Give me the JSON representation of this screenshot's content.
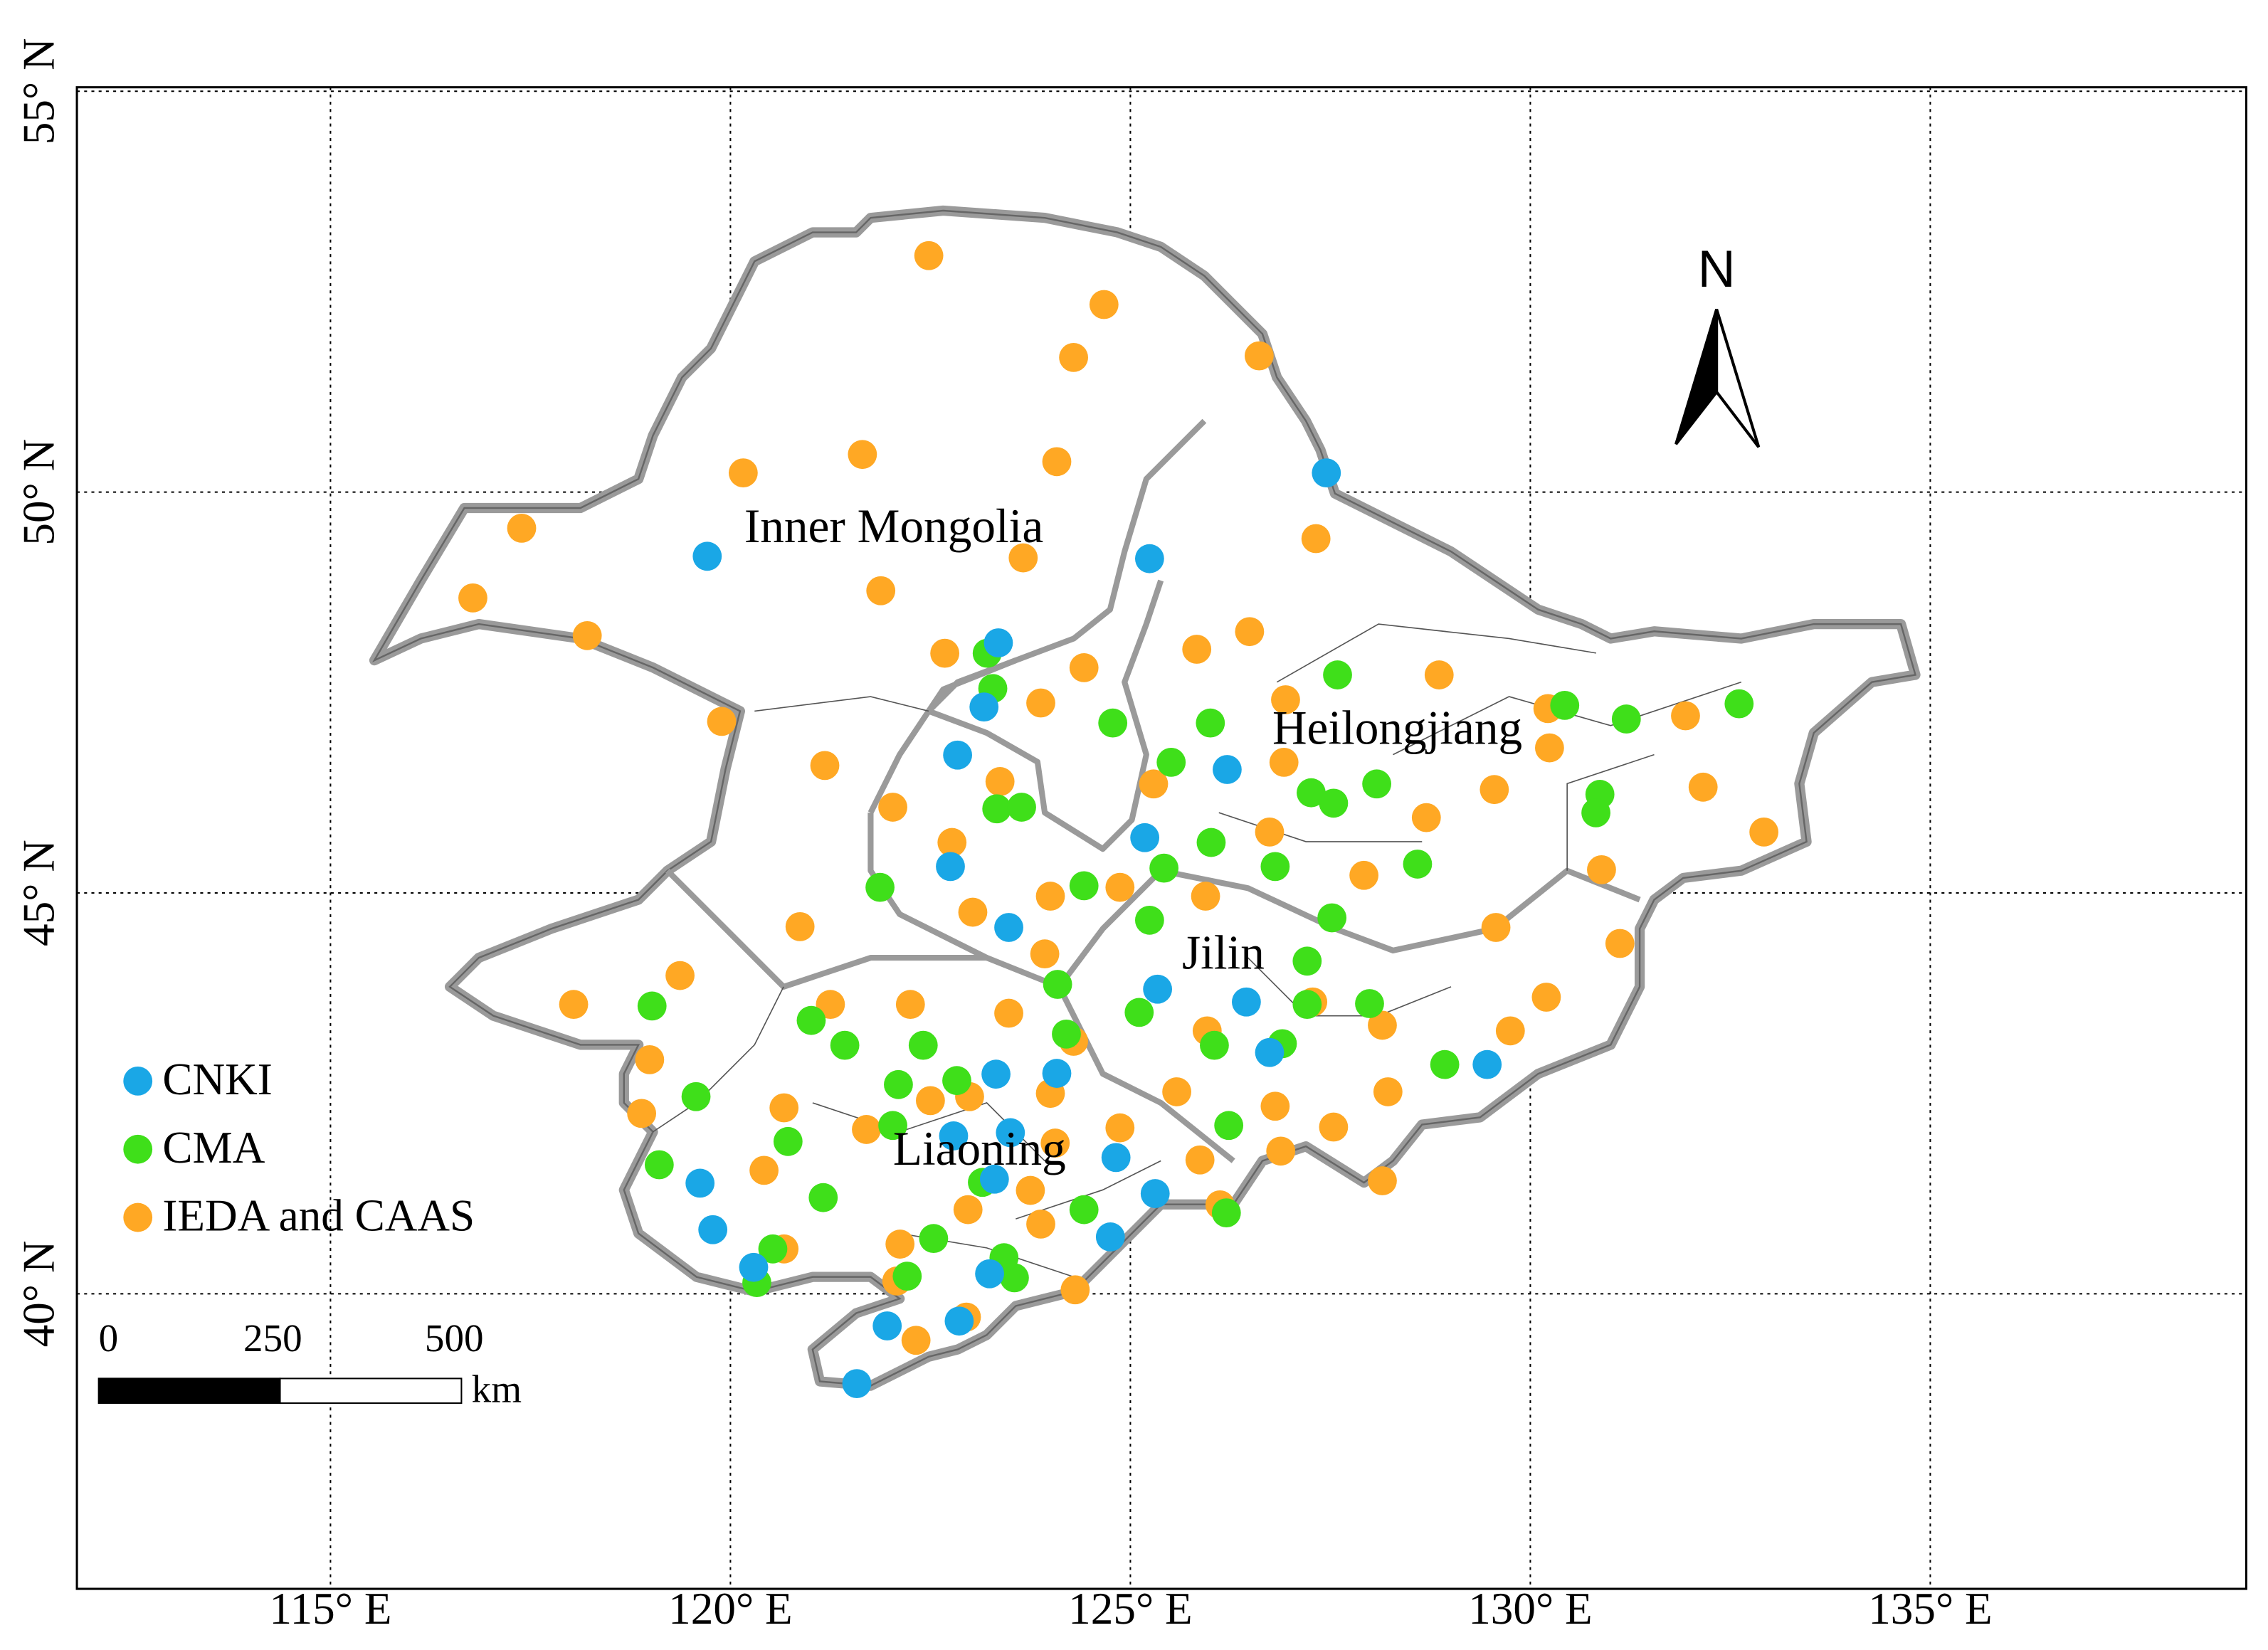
{
  "chart_data": {
    "type": "map",
    "xlim": [
      111.83,
      138.95
    ],
    "ylim": [
      36.32,
      55.05
    ],
    "xticks": [
      {
        "value": 115,
        "label": "115° E"
      },
      {
        "value": 120,
        "label": "120° E"
      },
      {
        "value": 125,
        "label": "125° E"
      },
      {
        "value": 130,
        "label": "130° E"
      },
      {
        "value": 135,
        "label": "135° E"
      }
    ],
    "yticks": [
      {
        "value": 40,
        "label": "40° N"
      },
      {
        "value": 45,
        "label": "45° N"
      },
      {
        "value": 50,
        "label": "50° N"
      },
      {
        "value": 55,
        "label": "55° N"
      }
    ],
    "grid": true,
    "legend": "lower left",
    "annotations": [
      "Inner Mongolia",
      "Heilongjiang",
      "Jilin",
      "Liaoning"
    ],
    "north_label": "N",
    "scale_bar": {
      "ticks": [
        0,
        250,
        500
      ],
      "unit": "km"
    },
    "series": [
      {
        "name": "IEDA and CAAS",
        "color": "#ffa824",
        "x": [
          122.48,
          124.67,
          124.29,
          126.61,
          121.65,
          120.16,
          124.08,
          117.39,
          116.78,
          118.21,
          121.88,
          123.66,
          127.32,
          125.83,
          126.49,
          122.68,
          124.42,
          123.88,
          126.94,
          128.86,
          131.94,
          130.22,
          130.24,
          119.89,
          121.18,
          122.03,
          123.37,
          122.77,
          125.29,
          126.92,
          129.55,
          132.16,
          132.92,
          130.89,
          128.7,
          126.74,
          127.92,
          125.94,
          124.87,
          124.0,
          123.03,
          120.87,
          123.93,
          129.57,
          131.12,
          119.37,
          118.04,
          121.25,
          122.25,
          123.48,
          124.29,
          125.96,
          127.28,
          128.15,
          130.2,
          129.75,
          118.99,
          118.89,
          120.67,
          124.0,
          122.99,
          121.7,
          122.5,
          125.58,
          126.81,
          128.22,
          124.87,
          127.54,
          124.06,
          126.88,
          125.87,
          128.15,
          120.42,
          123.75,
          122.97,
          123.88,
          126.12,
          120.67,
          122.12,
          122.08,
          124.31,
          122.32,
          122.95
        ],
        "values": [
          52.95,
          52.34,
          51.68,
          51.7,
          50.47,
          50.24,
          50.38,
          49.55,
          48.68,
          48.21,
          48.77,
          49.18,
          49.42,
          48.04,
          48.26,
          47.99,
          47.81,
          47.37,
          47.41,
          47.72,
          47.21,
          47.3,
          46.81,
          47.14,
          46.59,
          46.07,
          46.39,
          45.63,
          46.36,
          46.63,
          46.29,
          46.32,
          45.76,
          45.29,
          45.94,
          45.76,
          45.22,
          44.96,
          45.07,
          44.96,
          44.76,
          44.58,
          44.24,
          44.57,
          44.37,
          43.97,
          43.61,
          43.61,
          43.61,
          43.5,
          43.15,
          43.28,
          43.64,
          43.35,
          43.7,
          43.28,
          42.92,
          42.25,
          42.32,
          42.5,
          42.46,
          42.05,
          42.41,
          42.52,
          42.34,
          42.52,
          42.07,
          42.08,
          41.88,
          41.78,
          41.67,
          41.41,
          41.54,
          41.29,
          41.05,
          40.87,
          41.11,
          40.56,
          40.62,
          40.16,
          40.05,
          39.42,
          39.71
        ]
      },
      {
        "name": "CMA",
        "color": "#3fdf1a",
        "x": [
          123.28,
          123.21,
          124.78,
          126.0,
          125.51,
          127.59,
          130.43,
          131.2,
          132.61,
          130.87,
          130.82,
          127.26,
          127.54,
          128.08,
          128.59,
          126.81,
          126.01,
          125.42,
          124.42,
          125.24,
          123.33,
          123.64,
          121.87,
          127.52,
          127.21,
          127.21,
          127.99,
          126.9,
          126.05,
          125.11,
          124.09,
          124.2,
          121.01,
          121.43,
          122.41,
          119.02,
          122.1,
          122.83,
          119.57,
          122.03,
          120.72,
          119.11,
          121.16,
          123.15,
          124.42,
          126.2,
          126.23,
          128.93,
          122.54,
          122.21,
          123.55,
          123.42,
          120.53,
          120.33
        ],
        "values": [
          47.55,
          47.99,
          47.12,
          47.12,
          46.63,
          47.72,
          47.34,
          47.17,
          47.36,
          46.23,
          46.0,
          46.25,
          46.12,
          46.36,
          45.36,
          45.33,
          45.63,
          45.31,
          45.09,
          44.66,
          46.05,
          46.07,
          45.07,
          44.69,
          44.15,
          43.61,
          43.62,
          43.12,
          43.1,
          43.51,
          43.86,
          43.24,
          43.41,
          43.1,
          43.1,
          43.59,
          42.61,
          42.66,
          42.46,
          42.1,
          41.9,
          41.61,
          41.2,
          41.39,
          41.05,
          41.01,
          42.1,
          42.86,
          40.69,
          40.22,
          40.2,
          40.45,
          40.56,
          40.14
        ]
      },
      {
        "name": "CNKI",
        "color": "#1aa7e6",
        "x": [
          119.71,
          125.24,
          127.45,
          123.35,
          123.17,
          122.84,
          122.75,
          125.18,
          126.21,
          123.48,
          125.34,
          126.45,
          126.74,
          124.08,
          123.32,
          122.79,
          123.5,
          124.82,
          123.3,
          119.62,
          119.78,
          124.75,
          125.31,
          123.24,
          120.29,
          121.96,
          122.86,
          121.58,
          129.46
        ],
        "values": [
          49.2,
          49.17,
          50.24,
          48.12,
          47.32,
          46.72,
          45.33,
          45.69,
          46.54,
          44.57,
          43.8,
          43.64,
          43.01,
          42.75,
          42.74,
          41.97,
          42.01,
          41.7,
          41.43,
          41.38,
          40.8,
          40.71,
          41.25,
          40.25,
          40.33,
          39.6,
          39.66,
          38.88,
          42.86
        ]
      }
    ]
  }
}
